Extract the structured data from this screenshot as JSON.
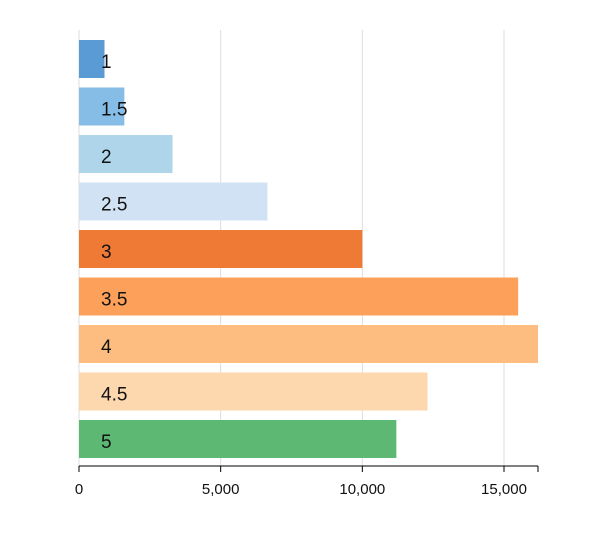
{
  "chart_data": {
    "type": "bar",
    "orientation": "horizontal",
    "categories": [
      "1",
      "1.5",
      "2",
      "2.5",
      "3",
      "3.5",
      "4",
      "4.5",
      "5"
    ],
    "values": [
      900,
      1600,
      3300,
      6650,
      10000,
      15500,
      16200,
      12300,
      11200
    ],
    "colors": [
      "#5b9bd5",
      "#86bde6",
      "#aed5ea",
      "#d1e2f5",
      "#ef7a35",
      "#fda15a",
      "#fdbc80",
      "#fdd7ae",
      "#5cb872"
    ],
    "x_ticks": [
      0,
      5000,
      10000,
      15000
    ],
    "x_tick_labels": [
      "0",
      "5,000",
      "10,000",
      "15,000"
    ],
    "xlim": [
      0,
      16200
    ],
    "grid": "vertical",
    "title": "",
    "xlabel": "",
    "ylabel": ""
  }
}
